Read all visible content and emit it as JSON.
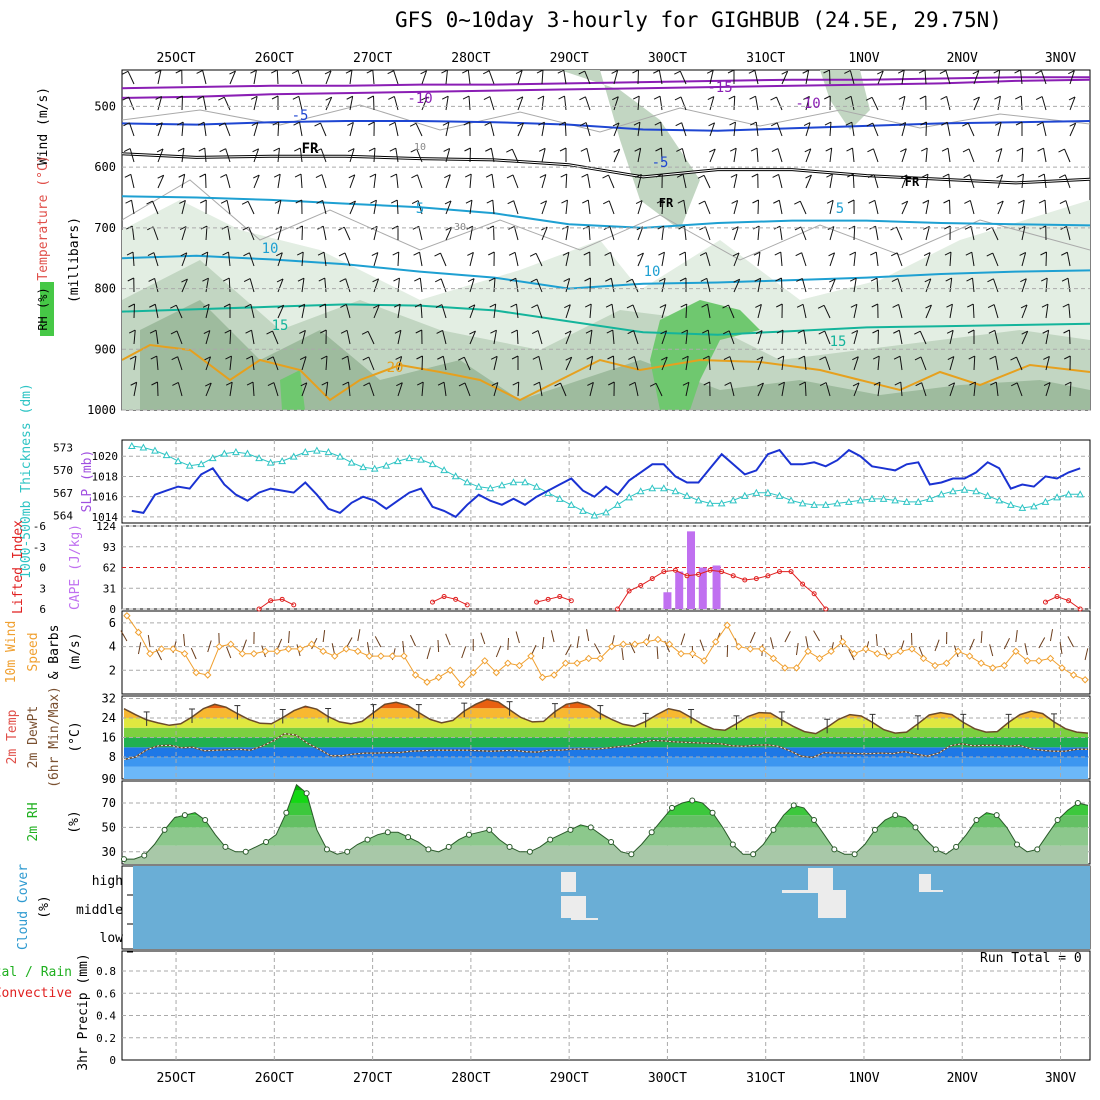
{
  "title": "GFS 0~10day 3-hourly for GIGHBUB (24.5E, 29.75N)",
  "time_axis": {
    "labels": [
      "25OCT",
      "26OCT",
      "27OCT",
      "28OCT",
      "29OCT",
      "30OCT",
      "31OCT",
      "1NOV",
      "2NOV",
      "3NOV"
    ],
    "days": [
      0,
      1,
      2,
      3,
      4,
      5,
      6,
      7,
      8,
      9
    ],
    "range": [
      -0.55,
      9.3
    ]
  },
  "colors": {
    "rh_light": "#e3eee3",
    "rh_mid": "#c2d6c2",
    "rh_dark": "#9ebb9e",
    "rh_bright": "#6fc86f",
    "temp_purple": "#8a1eb4",
    "temp_blue": "#1e46d2",
    "temp_cyan": "#1ea0d2",
    "temp_teal": "#14b49b",
    "temp_green": "#1eb46e",
    "temp_orange": "#e6a01e",
    "thickness": "#2ec4c4",
    "slp": "#1a32d2",
    "lifted": "#e02020",
    "cape": "#c070f0",
    "wind_speed": "#f0a030",
    "barb": "#6a3c1a",
    "cloud": "#6aaed6",
    "cloud_patch": "#ececec"
  },
  "chart_data": [
    {
      "panel": "upper-air",
      "type": "contour",
      "ylabel": "Wind (m/s) Temperature (°C) RH (%)",
      "ylabel_parts": {
        "wind": "Wind (m/s)",
        "temp": "Temperature (°C)",
        "rh": "RH (%)",
        "unit": "(millibars)"
      },
      "yticks": [
        500,
        600,
        700,
        800,
        900,
        1000
      ],
      "ylim": [
        1000,
        440
      ],
      "isotherms": [
        {
          "label": "-15",
          "level": [
            470,
            468,
            466,
            466,
            464,
            464,
            462,
            460,
            458,
            456,
            456,
            454,
            452,
            452
          ]
        },
        {
          "label": "-10",
          "level": [
            486,
            484,
            480,
            478,
            476,
            474,
            472,
            470,
            468,
            466,
            464,
            462,
            458,
            456
          ]
        },
        {
          "label": "-5",
          "level": [
            528,
            530,
            526,
            524,
            524,
            526,
            530,
            538,
            540,
            536,
            532,
            528,
            526,
            524
          ]
        },
        {
          "label": "FR",
          "level": [
            578,
            584,
            582,
            582,
            586,
            588,
            596,
            616,
            604,
            604,
            614,
            620,
            626,
            620
          ]
        },
        {
          "label": "5",
          "level": [
            648,
            650,
            654,
            660,
            666,
            676,
            694,
            700,
            692,
            688,
            688,
            692,
            694,
            696
          ]
        },
        {
          "label": "10",
          "level": [
            750,
            746,
            752,
            760,
            772,
            782,
            800,
            792,
            790,
            786,
            782,
            776,
            772,
            770
          ]
        },
        {
          "label": "15",
          "level": [
            838,
            834,
            830,
            826,
            828,
            836,
            854,
            872,
            876,
            870,
            864,
            862,
            860,
            858
          ]
        }
      ],
      "temp_labels": [
        "-15",
        "-10",
        "-5",
        "FR",
        "5",
        "10",
        "15",
        "20",
        "30",
        "10",
        "5"
      ]
    },
    {
      "panel": "thickness-slp",
      "type": "line",
      "ylabel_left": "1000-500mb Thickness (dm)",
      "ylabel_right": "SLP (mb)",
      "yticks_left": [
        564,
        567,
        570,
        573
      ],
      "yticks_right": [
        1014,
        1016,
        1018,
        1020
      ],
      "ylim_left": [
        563,
        574
      ],
      "ylim_right": [
        1013.4,
        1021.6
      ],
      "series": [
        {
          "name": "thickness",
          "values": [
            573.2,
            573.0,
            572.6,
            572.0,
            571.2,
            570.6,
            570.8,
            571.6,
            572.2,
            572.4,
            572.2,
            571.6,
            571.0,
            571.2,
            571.8,
            572.4,
            572.6,
            572.4,
            571.8,
            571.0,
            570.4,
            570.2,
            570.6,
            571.2,
            571.6,
            571.4,
            570.8,
            570.0,
            569.2,
            568.4,
            567.8,
            567.6,
            568.0,
            568.4,
            568.4,
            567.8,
            567.0,
            566.2,
            565.4,
            564.6,
            564.0,
            564.4,
            565.4,
            566.4,
            567.2,
            567.6,
            567.6,
            567.2,
            566.6,
            566.0,
            565.6,
            565.6,
            566.0,
            566.6,
            567.0,
            567.0,
            566.6,
            566.0,
            565.6,
            565.4,
            565.4,
            565.6,
            565.8,
            566.0,
            566.2,
            566.2,
            566.0,
            565.8,
            565.8,
            566.2,
            566.8,
            567.2,
            567.4,
            567.2,
            566.6,
            566.0,
            565.4,
            565.0,
            565.2,
            565.8,
            566.4,
            566.8,
            566.8
          ]
        },
        {
          "name": "slp",
          "values": [
            1014.6,
            1014.4,
            1016.2,
            1016.6,
            1017.0,
            1016.8,
            1018.2,
            1018.8,
            1017.2,
            1016.2,
            1015.6,
            1016.4,
            1016.8,
            1016.6,
            1016.4,
            1017.4,
            1016.2,
            1014.8,
            1014.4,
            1015.4,
            1016.0,
            1015.6,
            1014.8,
            1015.6,
            1016.4,
            1016.8,
            1015.0,
            1014.6,
            1014.0,
            1015.2,
            1016.2,
            1015.6,
            1015.2,
            1015.8,
            1015.2,
            1016.0,
            1016.6,
            1017.2,
            1017.8,
            1016.6,
            1016.0,
            1017.0,
            1016.2,
            1017.6,
            1018.4,
            1019.2,
            1019.2,
            1018.0,
            1017.4,
            1017.4,
            1018.8,
            1020.2,
            1019.2,
            1018.2,
            1018.6,
            1020.2,
            1020.6,
            1019.2,
            1019.2,
            1019.4,
            1019.0,
            1019.6,
            1020.6,
            1020.0,
            1019.0,
            1018.8,
            1018.6,
            1019.2,
            1019.4,
            1017.2,
            1017.4,
            1017.8,
            1017.8,
            1018.4,
            1019.4,
            1018.8,
            1016.8,
            1017.2,
            1017.0,
            1018.0,
            1017.8,
            1018.4,
            1018.8
          ]
        }
      ]
    },
    {
      "panel": "lifted-cape",
      "type": "line+bar",
      "ylabel_left": "Lifted Index",
      "ylabel_right": "CAPE (J/kg)",
      "yticks_left": [
        -6,
        -3,
        0,
        3,
        6
      ],
      "yticks_left_labels": [
        "-6",
        "-3",
        "0",
        "3",
        "6"
      ],
      "yticks_right": [
        0,
        31,
        62,
        93,
        124
      ],
      "ylim_left": [
        6,
        -6
      ],
      "ylim_right": [
        0,
        124
      ],
      "lifted_index": [
        null,
        null,
        null,
        null,
        null,
        null,
        null,
        null,
        null,
        null,
        null,
        6.0,
        4.8,
        4.6,
        5.4,
        null,
        null,
        null,
        null,
        null,
        null,
        null,
        null,
        null,
        null,
        null,
        5.0,
        4.2,
        4.6,
        5.4,
        null,
        null,
        null,
        null,
        null,
        5.0,
        4.6,
        4.2,
        4.8,
        null,
        null,
        null,
        6.0,
        3.4,
        2.6,
        1.6,
        0.6,
        0.4,
        1.2,
        1.0,
        0.4,
        0.6,
        1.2,
        1.8,
        1.6,
        1.2,
        0.6,
        0.6,
        2.4,
        3.8,
        6.0,
        null,
        null,
        null,
        null,
        null,
        null,
        null,
        null,
        null,
        null,
        null,
        null,
        null,
        null,
        null,
        null,
        null,
        null,
        5.0,
        4.2,
        4.8,
        6.0
      ],
      "cape_bars": [
        {
          "day": 5.0,
          "value": 25
        },
        {
          "day": 5.12,
          "value": 56
        },
        {
          "day": 5.24,
          "value": 116
        },
        {
          "day": 5.36,
          "value": 62
        },
        {
          "day": 5.5,
          "value": 65
        }
      ]
    },
    {
      "panel": "10m-wind",
      "type": "line",
      "ylabel": "10m Wind Speed (m/s) & Barbs",
      "ylabel_parts": {
        "a": "10m Wind",
        "b": "Speed",
        "c": "& Barbs",
        "d": "(m/s)"
      },
      "yticks": [
        2,
        4,
        6
      ],
      "ylim": [
        0,
        7
      ],
      "values": [
        6.6,
        5.2,
        3.4,
        3.8,
        3.8,
        3.4,
        1.8,
        1.6,
        4.0,
        4.2,
        3.4,
        3.4,
        3.6,
        3.6,
        3.8,
        3.8,
        4.2,
        3.6,
        3.2,
        3.8,
        3.6,
        3.2,
        3.2,
        3.2,
        3.2,
        1.6,
        1.0,
        1.4,
        2.0,
        0.8,
        1.8,
        2.8,
        1.8,
        2.6,
        2.4,
        3.2,
        1.4,
        1.6,
        2.6,
        2.6,
        3.0,
        3.0,
        4.0,
        4.2,
        4.2,
        4.4,
        4.6,
        4.2,
        3.4,
        3.4,
        2.8,
        4.4,
        5.8,
        4.0,
        3.8,
        3.8,
        3.0,
        2.2,
        2.2,
        3.6,
        3.0,
        3.6,
        4.4,
        3.4,
        3.8,
        3.4,
        3.2,
        3.6,
        3.8,
        3.0,
        2.4,
        2.6,
        3.6,
        3.2,
        2.6,
        2.2,
        2.4,
        3.6,
        2.8,
        2.8,
        3.0,
        2.2,
        1.6,
        1.2
      ]
    },
    {
      "panel": "2m-temp",
      "type": "area",
      "ylabel": "2m Temp 2m DewPt (6hr Min/Max)",
      "ylabel_parts": {
        "a": "2m Temp",
        "b": "2m DewPt",
        "c": "(6hr Min/Max)",
        "d": "(°C)"
      },
      "yticks": [
        8,
        16,
        24,
        32
      ],
      "ytick_extra": "90",
      "ylim": [
        -1,
        33
      ],
      "temp": [
        27.8,
        25.4,
        23.2,
        22.0,
        21.0,
        21.6,
        24.4,
        27.8,
        29.6,
        28.4,
        25.8,
        23.4,
        21.8,
        21.6,
        24.2,
        27.0,
        28.8,
        27.6,
        24.6,
        22.4,
        21.6,
        22.6,
        26.2,
        29.6,
        30.4,
        29.2,
        26.2,
        23.4,
        22.0,
        23.0,
        26.8,
        29.6,
        31.6,
        30.6,
        27.4,
        24.2,
        22.4,
        22.6,
        26.6,
        29.6,
        30.4,
        29.0,
        25.8,
        23.4,
        21.4,
        20.6,
        22.6,
        25.4,
        27.8,
        26.8,
        24.2,
        21.4,
        19.4,
        19.0,
        21.6,
        24.6,
        26.2,
        26.0,
        23.2,
        20.6,
        18.4,
        17.6,
        20.2,
        23.4,
        25.4,
        24.8,
        22.2,
        19.2,
        17.8,
        18.2,
        21.6,
        25.2,
        26.2,
        25.4,
        22.2,
        19.6,
        18.2,
        18.4,
        22.2,
        25.4,
        26.8,
        25.8,
        22.4,
        19.6,
        18.2,
        17.8
      ],
      "dewpoint": [
        7.0,
        8.0,
        11.0,
        12.6,
        12.8,
        11.8,
        12.0,
        10.6,
        10.8,
        11.0,
        11.2,
        10.8,
        12.4,
        14.6,
        17.6,
        17.0,
        13.6,
        11.2,
        8.6,
        8.6,
        9.2,
        9.6,
        9.6,
        9.8,
        9.8,
        10.4,
        10.6,
        10.8,
        10.8,
        10.8,
        10.8,
        10.6,
        10.4,
        10.6,
        10.8,
        10.2,
        10.0,
        10.8,
        10.8,
        11.2,
        11.4,
        11.2,
        11.6,
        12.2,
        12.6,
        13.8,
        14.8,
        14.6,
        14.2,
        14.0,
        13.8,
        13.6,
        13.4,
        12.6,
        12.4,
        12.8,
        13.0,
        12.4,
        10.6,
        8.4,
        7.8,
        9.8,
        9.6,
        9.6,
        9.4,
        9.4,
        9.6,
        9.4,
        10.2,
        9.2,
        8.4,
        9.6,
        12.6,
        13.4,
        12.6,
        12.8,
        12.8,
        12.4,
        12.8,
        11.4,
        10.8,
        10.4,
        10.4,
        11.2,
        11.2
      ]
    },
    {
      "panel": "2m-rh",
      "type": "area",
      "ylabel": "2m RH (%)",
      "ylabel_parts": {
        "a": "2m RH",
        "b": "(%)"
      },
      "yticks": [
        30,
        50,
        70
      ],
      "ylim": [
        20,
        88
      ],
      "values": [
        24,
        24,
        27,
        36,
        48,
        58,
        60,
        62,
        56,
        44,
        34,
        30,
        30,
        34,
        38,
        44,
        62,
        85,
        78,
        48,
        32,
        28,
        30,
        36,
        40,
        44,
        46,
        46,
        42,
        38,
        32,
        30,
        34,
        40,
        44,
        46,
        48,
        40,
        34,
        30,
        30,
        34,
        40,
        44,
        48,
        52,
        50,
        44,
        38,
        30,
        28,
        36,
        46,
        56,
        66,
        70,
        72,
        70,
        62,
        50,
        36,
        28,
        28,
        36,
        48,
        60,
        68,
        66,
        56,
        44,
        32,
        28,
        28,
        36,
        48,
        56,
        60,
        58,
        50,
        40,
        32,
        28,
        34,
        44,
        56,
        62,
        60,
        50,
        36,
        30,
        32,
        44,
        56,
        64,
        70,
        68
      ]
    },
    {
      "panel": "cloud-cover",
      "type": "heatmap",
      "ylabel": "Cloud Cover (%)",
      "ylabel_parts": {
        "a": "Cloud Cover",
        "b": "(%)"
      },
      "levels": [
        "high",
        "middle",
        "low"
      ]
    },
    {
      "panel": "precip",
      "type": "bar",
      "ylabel": "Total / Rain Convective 3hr Precip (mm)",
      "ylabel_parts": {
        "a": "Total / Rain",
        "b": "Convective",
        "c": "3hr Precip (mm)"
      },
      "yticks": [
        0,
        0.2,
        0.4,
        0.6,
        0.8
      ],
      "ytick_labels": [
        "0",
        "0.2",
        "0.4",
        "0.6",
        "0.8"
      ],
      "ylim": [
        0,
        0.98
      ],
      "run_total": "Run Total = 0",
      "values": []
    }
  ]
}
